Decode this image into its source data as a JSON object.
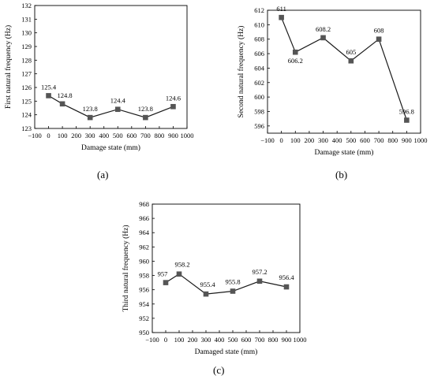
{
  "chart_data": [
    {
      "type": "line",
      "panel_label": "(a)",
      "xlabel": "Damage state (mm)",
      "ylabel": "First natural frequency (Hz)",
      "xlim": [
        -100,
        1000
      ],
      "ylim": [
        123,
        132
      ],
      "xticks": [
        "−100",
        "0",
        "100",
        "200",
        "300",
        "400",
        "500",
        "600",
        "700",
        "800",
        "900",
        "1000"
      ],
      "yticks": [
        "123",
        "124",
        "125",
        "126",
        "127",
        "128",
        "129",
        "130",
        "131",
        "132"
      ],
      "x": [
        0,
        100,
        300,
        500,
        700,
        900
      ],
      "values": [
        125.4,
        124.8,
        123.8,
        124.4,
        123.8,
        124.6
      ],
      "data_labels": [
        "125.4",
        "124.8",
        "123.8",
        "124.4",
        "123.8",
        "124.6"
      ],
      "marker": "square",
      "color": "#1a1a1a",
      "marker_color": "#555555",
      "grid": false
    },
    {
      "type": "line",
      "panel_label": "(b)",
      "xlabel": "Damage state (mm)",
      "ylabel": "Second natural frequency (Hz)",
      "xlim": [
        -100,
        1000
      ],
      "ylim": [
        595,
        612
      ],
      "xticks": [
        "−100",
        "0",
        "100",
        "200",
        "300",
        "400",
        "500",
        "600",
        "700",
        "800",
        "900",
        "1000"
      ],
      "yticks": [
        "596",
        "598",
        "600",
        "602",
        "604",
        "606",
        "608",
        "610",
        "612"
      ],
      "x": [
        0,
        100,
        300,
        500,
        700,
        900
      ],
      "values": [
        611,
        606.2,
        608.2,
        605,
        608,
        596.8
      ],
      "data_labels": [
        "611",
        "606.2",
        "608.2",
        "605",
        "608",
        "596.8"
      ],
      "marker": "square",
      "color": "#1a1a1a",
      "marker_color": "#555555",
      "grid": false
    },
    {
      "type": "line",
      "panel_label": "(c)",
      "xlabel": "Damaged state (mm)",
      "ylabel": "Third natural frequency (Hz)",
      "xlim": [
        -100,
        1000
      ],
      "ylim": [
        950,
        968
      ],
      "xticks": [
        "−100",
        "0",
        "100",
        "200",
        "300",
        "400",
        "500",
        "600",
        "700",
        "800",
        "900",
        "1000"
      ],
      "yticks": [
        "950",
        "952",
        "954",
        "956",
        "958",
        "960",
        "962",
        "964",
        "966",
        "968"
      ],
      "x": [
        0,
        100,
        300,
        500,
        700,
        900
      ],
      "values": [
        957,
        958.2,
        955.4,
        955.8,
        957.2,
        956.4
      ],
      "data_labels": [
        "957",
        "958.2",
        "955.4",
        "955.8",
        "957.2",
        "956.4"
      ],
      "marker": "square",
      "color": "#1a1a1a",
      "marker_color": "#555555",
      "grid": false
    }
  ]
}
